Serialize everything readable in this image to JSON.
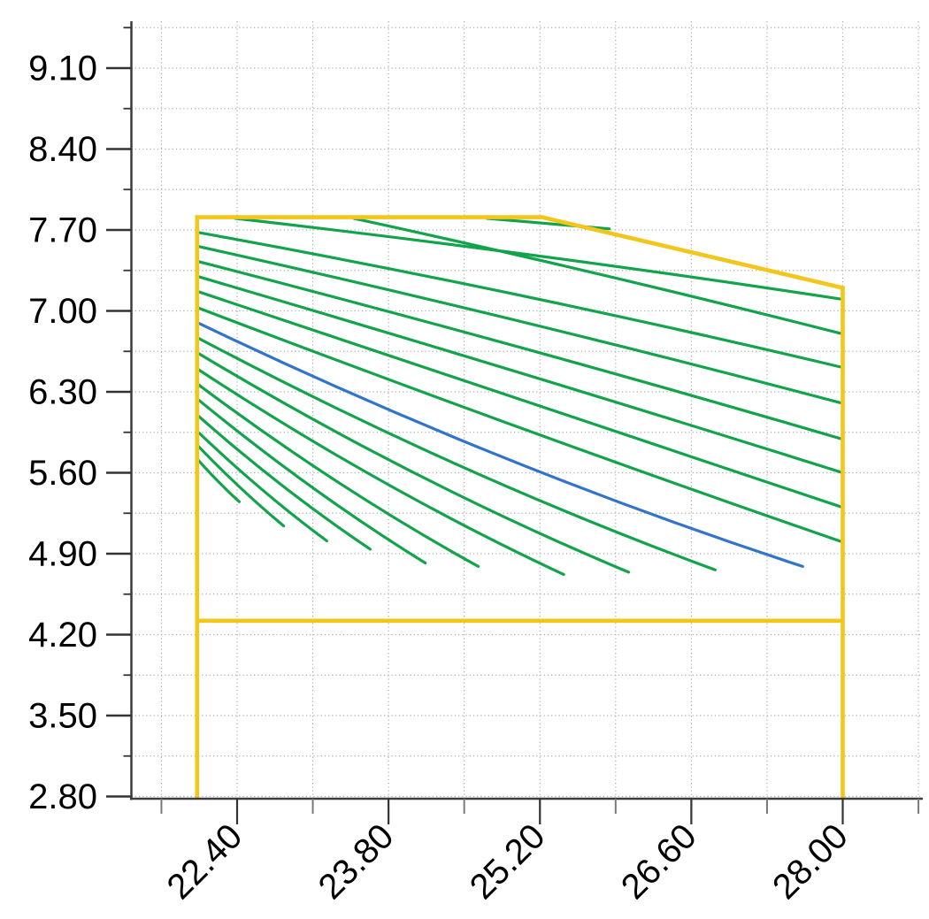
{
  "chart_data": {
    "type": "line",
    "title": "",
    "xlabel": "",
    "ylabel": "",
    "legend": {
      "visible": false
    },
    "grid": {
      "visible": true,
      "style": "dotted",
      "minor_gridlines": true
    },
    "x_axis": {
      "tick_labels": [
        "22.40",
        "23.80",
        "25.20",
        "26.60",
        "28.00"
      ],
      "tick_values": [
        22.4,
        23.8,
        25.2,
        26.6,
        28.0
      ],
      "minor_tick_values": [
        21.7,
        23.1,
        24.5,
        25.9,
        27.3,
        28.7
      ],
      "range": [
        21.42,
        28.74
      ],
      "label_rotation_deg": 45
    },
    "y_axis": {
      "tick_labels": [
        "9.10",
        "8.40",
        "7.70",
        "7.00",
        "6.30",
        "5.60",
        "4.90",
        "4.20",
        "3.50",
        "2.80"
      ],
      "tick_values": [
        9.1,
        8.4,
        7.7,
        7.0,
        6.3,
        5.6,
        4.9,
        4.2,
        3.5,
        2.8
      ],
      "minor_tick_values": [
        9.45,
        8.75,
        8.05,
        7.35,
        6.65,
        5.95,
        5.25,
        4.55,
        3.85,
        3.15
      ],
      "range": [
        2.78,
        9.51
      ]
    },
    "colors": {
      "envelope": "#F2C61A",
      "speed_line": "#12A34B",
      "highlight_line": "#3273CC",
      "grid": "#ABABAB",
      "axis": "#3C3C3C",
      "major_tick": "#333333",
      "minor_tick": "#7A7A7A",
      "label": "#000000"
    },
    "series": {
      "operating_envelope": {
        "name": "operating-envelope",
        "color_key": "envelope",
        "points": [
          [
            22.03,
            2.78
          ],
          [
            22.03,
            7.81
          ],
          [
            25.22,
            7.81
          ],
          [
            28.0,
            7.2
          ],
          [
            28.0,
            2.78
          ]
        ]
      },
      "envelope_lower_limit": {
        "name": "envelope-lower-limit",
        "color_key": "envelope",
        "points": [
          [
            22.03,
            4.32
          ],
          [
            28.0,
            4.32
          ]
        ]
      },
      "speed_lines": [
        {
          "color_key": "speed_line",
          "start": [
            22.38,
            7.8
          ],
          "end": [
            28.0,
            7.1
          ],
          "sag": -0.05
        },
        {
          "color_key": "speed_line",
          "start": [
            23.48,
            7.8
          ],
          "end": [
            28.0,
            6.8
          ],
          "sag": -0.04
        },
        {
          "color_key": "speed_line",
          "start": [
            24.71,
            7.8
          ],
          "end": [
            25.84,
            7.71
          ],
          "sag": 0.0
        },
        {
          "color_key": "speed_line",
          "start": [
            22.03,
            7.68
          ],
          "end": [
            28.0,
            6.51
          ],
          "sag": -0.08
        },
        {
          "color_key": "speed_line",
          "start": [
            22.03,
            7.56
          ],
          "end": [
            28.0,
            6.2
          ],
          "sag": -0.06
        },
        {
          "color_key": "speed_line",
          "start": [
            22.03,
            7.43
          ],
          "end": [
            28.0,
            5.89
          ],
          "sag": -0.05
        },
        {
          "color_key": "speed_line",
          "start": [
            22.03,
            7.3
          ],
          "end": [
            28.0,
            5.6
          ],
          "sag": -0.03
        },
        {
          "color_key": "speed_line",
          "start": [
            22.03,
            7.17
          ],
          "end": [
            28.0,
            5.3
          ],
          "sag": 0.0
        },
        {
          "color_key": "speed_line",
          "start": [
            22.03,
            7.03
          ],
          "end": [
            28.0,
            5.0
          ],
          "sag": 0.05
        },
        {
          "color_key": "highlight_line",
          "start": [
            22.03,
            6.9
          ],
          "end": [
            27.63,
            4.79
          ],
          "sag": 0.2
        },
        {
          "color_key": "speed_line",
          "start": [
            22.03,
            6.77
          ],
          "end": [
            26.82,
            4.76
          ],
          "sag": 0.18
        },
        {
          "color_key": "speed_line",
          "start": [
            22.03,
            6.64
          ],
          "end": [
            26.02,
            4.74
          ],
          "sag": 0.17
        },
        {
          "color_key": "speed_line",
          "start": [
            22.03,
            6.5
          ],
          "end": [
            25.42,
            4.72
          ],
          "sag": 0.15
        },
        {
          "color_key": "speed_line",
          "start": [
            22.03,
            6.37
          ],
          "end": [
            24.63,
            4.79
          ],
          "sag": 0.12
        },
        {
          "color_key": "speed_line",
          "start": [
            22.03,
            6.24
          ],
          "end": [
            24.14,
            4.82
          ],
          "sag": 0.1
        },
        {
          "color_key": "speed_line",
          "start": [
            22.03,
            6.1
          ],
          "end": [
            23.63,
            4.94
          ],
          "sag": 0.08
        },
        {
          "color_key": "speed_line",
          "start": [
            22.03,
            5.96
          ],
          "end": [
            23.23,
            5.01
          ],
          "sag": 0.06
        },
        {
          "color_key": "speed_line",
          "start": [
            22.03,
            5.84
          ],
          "end": [
            22.83,
            5.14
          ],
          "sag": 0.04
        },
        {
          "color_key": "speed_line",
          "start": [
            22.03,
            5.72
          ],
          "end": [
            22.42,
            5.35
          ],
          "sag": 0.02
        }
      ]
    }
  }
}
